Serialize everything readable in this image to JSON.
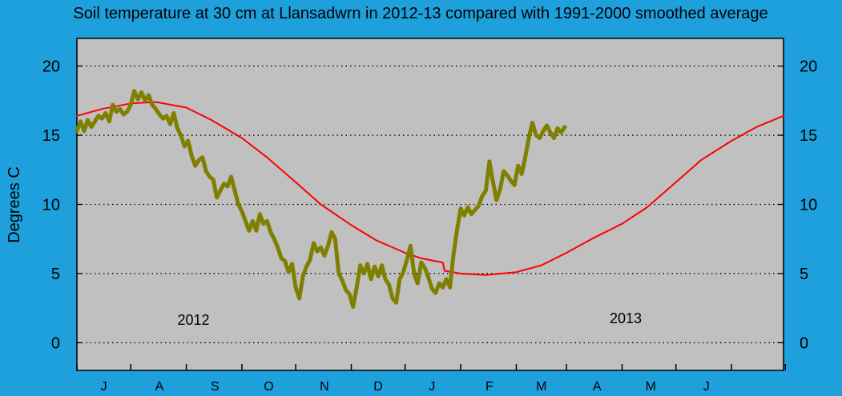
{
  "chart_data": {
    "type": "line",
    "title": "Soil temperature at 30 cm at Llansadwrn in 2012-13 compared with 1991-2000 smoothed average",
    "ylabel": "Degrees  C",
    "xlabel": "",
    "ylim": [
      -2,
      22
    ],
    "yticks": [
      0,
      5,
      10,
      15,
      20
    ],
    "x_domain": [
      "2012-06-01",
      "2013-06-30"
    ],
    "month_ticks": [
      "2012-06-01",
      "2012-07-01",
      "2012-08-01",
      "2012-09-01",
      "2012-10-01",
      "2012-11-01",
      "2012-12-01",
      "2013-01-01",
      "2013-02-01",
      "2013-03-01",
      "2013-04-01",
      "2013-05-01",
      "2013-06-01",
      "2013-07-01"
    ],
    "month_labels": [
      {
        "label": "J",
        "date": "2012-06-16"
      },
      {
        "label": "A",
        "date": "2012-07-17"
      },
      {
        "label": "S",
        "date": "2012-08-17"
      },
      {
        "label": "O",
        "date": "2012-09-16"
      },
      {
        "label": "N",
        "date": "2012-10-17"
      },
      {
        "label": "D",
        "date": "2012-11-16"
      },
      {
        "label": "J",
        "date": "2012-12-16"
      },
      {
        "label": "F",
        "date": "2013-01-17"
      },
      {
        "label": "M",
        "date": "2013-02-15"
      },
      {
        "label": "A",
        "date": "2013-03-18"
      },
      {
        "label": "M",
        "date": "2013-04-17"
      },
      {
        "label": "J",
        "date": "2013-05-18"
      }
    ],
    "annotations": [
      {
        "text": "2012",
        "date": "2012-08-05",
        "y": 1.3
      },
      {
        "text": "2013",
        "date": "2013-04-03",
        "y": 1.4
      }
    ],
    "grid": true,
    "colors": {
      "background": "#1ea0dc",
      "plot": "#c0c0c0",
      "observed": "#7f7f00",
      "average": "#ff0000"
    },
    "series": [
      {
        "role": "observed",
        "color": "#7f7f00",
        "points": [
          [
            "2012-06-01",
            15.3
          ],
          [
            "2012-06-03",
            16.0
          ],
          [
            "2012-06-05",
            15.3
          ],
          [
            "2012-06-07",
            16.1
          ],
          [
            "2012-06-09",
            15.6
          ],
          [
            "2012-06-11",
            16.0
          ],
          [
            "2012-06-13",
            16.4
          ],
          [
            "2012-06-15",
            16.2
          ],
          [
            "2012-06-17",
            16.6
          ],
          [
            "2012-06-19",
            16.0
          ],
          [
            "2012-06-21",
            17.2
          ],
          [
            "2012-06-23",
            16.7
          ],
          [
            "2012-06-25",
            16.9
          ],
          [
            "2012-06-27",
            16.5
          ],
          [
            "2012-06-29",
            16.7
          ],
          [
            "2012-07-01",
            17.2
          ],
          [
            "2012-07-03",
            18.2
          ],
          [
            "2012-07-05",
            17.6
          ],
          [
            "2012-07-07",
            18.1
          ],
          [
            "2012-07-09",
            17.5
          ],
          [
            "2012-07-11",
            17.9
          ],
          [
            "2012-07-13",
            17.2
          ],
          [
            "2012-07-15",
            16.9
          ],
          [
            "2012-07-17",
            16.5
          ],
          [
            "2012-07-19",
            16.2
          ],
          [
            "2012-07-21",
            16.4
          ],
          [
            "2012-07-23",
            15.8
          ],
          [
            "2012-07-25",
            16.6
          ],
          [
            "2012-07-27",
            15.5
          ],
          [
            "2012-07-29",
            15.0
          ],
          [
            "2012-07-31",
            14.2
          ],
          [
            "2012-08-02",
            14.6
          ],
          [
            "2012-08-04",
            13.5
          ],
          [
            "2012-08-06",
            12.8
          ],
          [
            "2012-08-08",
            13.2
          ],
          [
            "2012-08-10",
            13.4
          ],
          [
            "2012-08-12",
            12.4
          ],
          [
            "2012-08-14",
            12.0
          ],
          [
            "2012-08-16",
            11.8
          ],
          [
            "2012-08-18",
            10.5
          ],
          [
            "2012-08-20",
            11.0
          ],
          [
            "2012-08-22",
            11.5
          ],
          [
            "2012-08-24",
            11.3
          ],
          [
            "2012-08-26",
            12.0
          ],
          [
            "2012-08-28",
            11.0
          ],
          [
            "2012-08-30",
            10.0
          ],
          [
            "2012-09-01",
            9.5
          ],
          [
            "2012-09-03",
            8.8
          ],
          [
            "2012-09-05",
            8.1
          ],
          [
            "2012-09-07",
            8.8
          ],
          [
            "2012-09-09",
            8.1
          ],
          [
            "2012-09-11",
            9.3
          ],
          [
            "2012-09-13",
            8.6
          ],
          [
            "2012-09-15",
            8.8
          ],
          [
            "2012-09-17",
            8.0
          ],
          [
            "2012-09-19",
            7.5
          ],
          [
            "2012-09-21",
            6.9
          ],
          [
            "2012-09-23",
            6.1
          ],
          [
            "2012-09-25",
            5.9
          ],
          [
            "2012-09-27",
            5.1
          ],
          [
            "2012-09-29",
            5.7
          ],
          [
            "2012-10-01",
            4.0
          ],
          [
            "2012-10-03",
            3.2
          ],
          [
            "2012-10-05",
            4.8
          ],
          [
            "2012-10-07",
            5.5
          ],
          [
            "2012-10-09",
            6.0
          ],
          [
            "2012-10-11",
            7.2
          ],
          [
            "2012-10-13",
            6.6
          ],
          [
            "2012-10-15",
            6.9
          ],
          [
            "2012-10-17",
            6.3
          ],
          [
            "2012-10-19",
            7.0
          ],
          [
            "2012-10-21",
            8.0
          ],
          [
            "2012-10-23",
            7.5
          ],
          [
            "2012-10-25",
            5.0
          ],
          [
            "2012-10-27",
            4.5
          ],
          [
            "2012-10-29",
            3.8
          ],
          [
            "2012-10-31",
            3.5
          ],
          [
            "2012-11-02",
            2.6
          ],
          [
            "2012-11-04",
            4.0
          ],
          [
            "2012-11-06",
            5.6
          ],
          [
            "2012-11-08",
            5.0
          ],
          [
            "2012-11-10",
            5.7
          ],
          [
            "2012-11-12",
            4.6
          ],
          [
            "2012-11-14",
            5.5
          ],
          [
            "2012-11-16",
            4.8
          ],
          [
            "2012-11-18",
            5.6
          ],
          [
            "2012-11-20",
            4.6
          ],
          [
            "2012-11-22",
            4.2
          ],
          [
            "2012-11-24",
            3.2
          ],
          [
            "2012-11-26",
            2.9
          ],
          [
            "2012-11-28",
            4.6
          ],
          [
            "2012-11-30",
            5.1
          ],
          [
            "2012-12-02",
            6.0
          ],
          [
            "2012-12-04",
            7.0
          ],
          [
            "2012-12-06",
            5.0
          ],
          [
            "2012-12-08",
            4.3
          ],
          [
            "2012-12-10",
            5.8
          ],
          [
            "2012-12-12",
            5.4
          ],
          [
            "2012-12-14",
            4.7
          ],
          [
            "2012-12-16",
            3.9
          ],
          [
            "2012-12-18",
            3.6
          ],
          [
            "2012-12-20",
            4.3
          ],
          [
            "2012-12-22",
            4.0
          ],
          [
            "2012-12-24",
            4.6
          ],
          [
            "2012-12-26",
            4.0
          ],
          [
            "2012-12-28",
            6.4
          ],
          [
            "2012-12-30",
            8.2
          ],
          [
            "2013-01-01",
            9.7
          ],
          [
            "2013-01-03",
            9.2
          ],
          [
            "2013-01-05",
            9.8
          ],
          [
            "2013-01-07",
            9.3
          ],
          [
            "2013-01-09",
            9.6
          ],
          [
            "2013-01-11",
            9.9
          ],
          [
            "2013-01-13",
            10.6
          ],
          [
            "2013-01-15",
            11.0
          ],
          [
            "2013-01-17",
            13.1
          ],
          [
            "2013-01-19",
            11.6
          ],
          [
            "2013-01-21",
            10.3
          ],
          [
            "2013-01-23",
            11.1
          ],
          [
            "2013-01-25",
            12.4
          ],
          [
            "2013-01-27",
            12.1
          ],
          [
            "2013-01-29",
            11.7
          ],
          [
            "2013-01-31",
            11.4
          ],
          [
            "2013-02-02",
            12.8
          ],
          [
            "2013-02-04",
            12.2
          ],
          [
            "2013-02-06",
            13.4
          ],
          [
            "2013-02-08",
            14.8
          ],
          [
            "2013-02-10",
            15.9
          ],
          [
            "2013-02-12",
            15.0
          ],
          [
            "2013-02-14",
            14.8
          ],
          [
            "2013-02-16",
            15.3
          ],
          [
            "2013-02-18",
            15.7
          ],
          [
            "2013-02-20",
            15.2
          ],
          [
            "2013-02-22",
            14.8
          ],
          [
            "2013-02-24",
            15.5
          ],
          [
            "2013-02-26",
            15.2
          ],
          [
            "2013-02-28",
            15.6
          ]
        ]
      },
      {
        "role": "average",
        "color": "#ff0000",
        "points": [
          [
            "2012-06-01",
            16.4
          ],
          [
            "2012-06-15",
            16.9
          ],
          [
            "2012-07-01",
            17.3
          ],
          [
            "2012-07-15",
            17.4
          ],
          [
            "2012-08-01",
            17.0
          ],
          [
            "2012-08-15",
            16.1
          ],
          [
            "2012-09-01",
            14.8
          ],
          [
            "2012-09-15",
            13.4
          ],
          [
            "2012-10-01",
            11.6
          ],
          [
            "2012-10-15",
            10.0
          ],
          [
            "2012-11-01",
            8.5
          ],
          [
            "2012-11-15",
            7.4
          ],
          [
            "2012-12-01",
            6.5
          ],
          [
            "2012-12-10",
            6.1
          ],
          [
            "2012-12-22",
            5.8
          ],
          [
            "2012-12-23",
            5.2
          ],
          [
            "2013-01-01",
            5.0
          ],
          [
            "2013-01-15",
            4.9
          ],
          [
            "2013-02-01",
            5.1
          ],
          [
            "2013-02-15",
            5.6
          ],
          [
            "2013-03-01",
            6.5
          ],
          [
            "2013-03-15",
            7.5
          ],
          [
            "2013-04-01",
            8.6
          ],
          [
            "2013-04-15",
            9.8
          ],
          [
            "2013-05-01",
            11.6
          ],
          [
            "2013-05-15",
            13.2
          ],
          [
            "2013-06-01",
            14.6
          ],
          [
            "2013-06-15",
            15.6
          ],
          [
            "2013-06-30",
            16.4
          ]
        ]
      }
    ]
  }
}
